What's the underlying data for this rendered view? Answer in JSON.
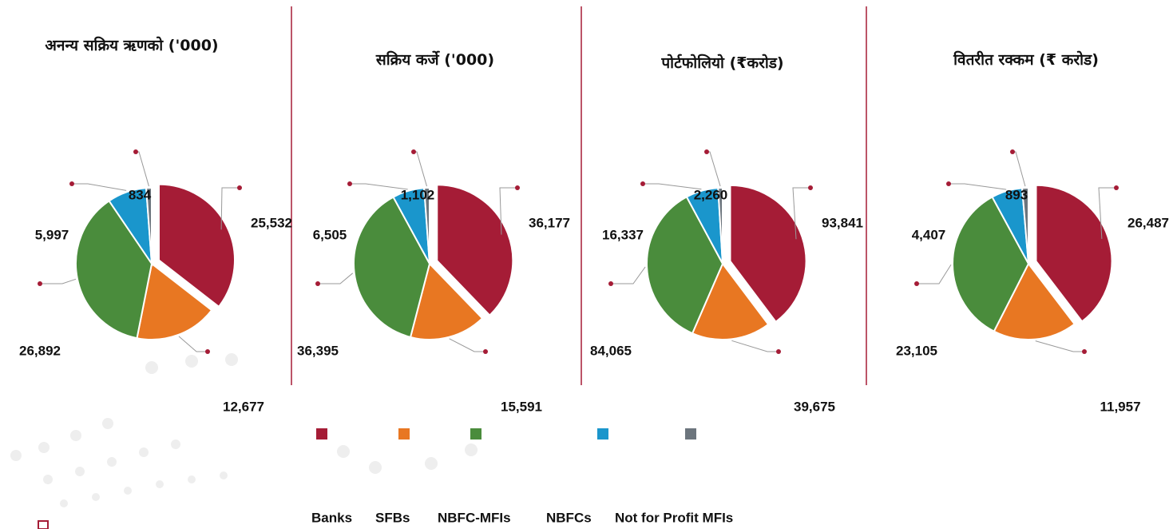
{
  "legend": {
    "labels": [
      "Banks",
      "SFBs",
      "NBFC-MFIs",
      "NBFCs",
      "Not for Profit MFIs"
    ],
    "colors": [
      "#a51c36",
      "#e87722",
      "#4a8c3c",
      "#1a96cc",
      "#6c757d"
    ]
  },
  "chart_data": [
    {
      "type": "pie",
      "title": "अनन्य सक्रिय ऋणको ('000)",
      "values": [
        25532,
        12677,
        26892,
        5997,
        834
      ],
      "value_labels": [
        "25,532",
        "12,677",
        "26,892",
        "5,997",
        "834"
      ]
    },
    {
      "type": "pie",
      "title": "सक्रिय कर्जे ('000)",
      "values": [
        36177,
        15591,
        36395,
        6505,
        1102
      ],
      "value_labels": [
        "36,177",
        "15,591",
        "36,395",
        "6,505",
        "1,102"
      ]
    },
    {
      "type": "pie",
      "title": "पोर्टफोलियो (₹करोड)",
      "values": [
        93841,
        39675,
        84065,
        16337,
        2260
      ],
      "value_labels": [
        "93,841",
        "39,675",
        "84,065",
        "16,337",
        "2,260"
      ]
    },
    {
      "type": "pie",
      "title": "वितरीत रक्कम (₹ करोड)",
      "values": [
        26487,
        11957,
        23105,
        4407,
        893
      ],
      "value_labels": [
        "26,487",
        "11,957",
        "23,105",
        "4,407",
        "893"
      ]
    }
  ]
}
